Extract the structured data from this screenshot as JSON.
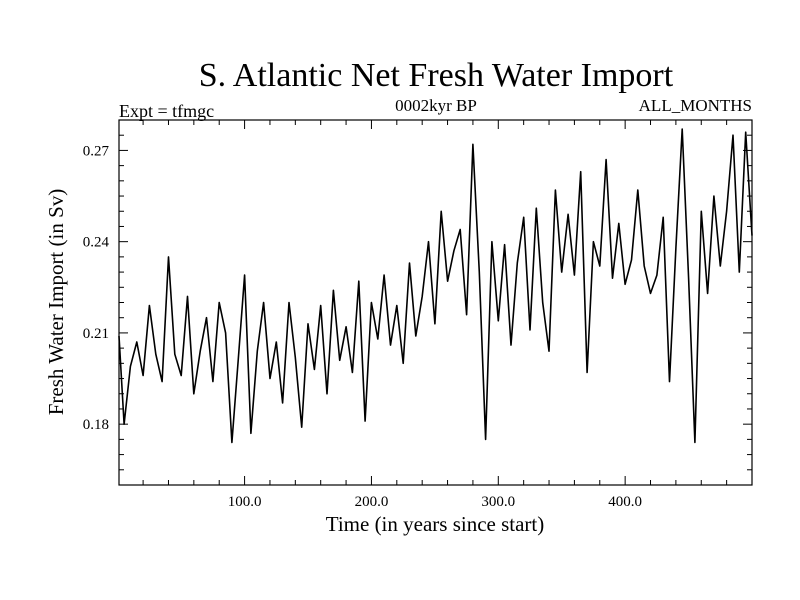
{
  "chart_data": {
    "type": "line",
    "title": "S. Atlantic Net Fresh Water Import",
    "subtitle_left": "Expt = tfmgc",
    "subtitle_center": "0002kyr BP",
    "subtitle_right": "ALL_MONTHS",
    "xlabel": "Time (in years since start)",
    "ylabel": "Fresh Water Import (in Sv)",
    "xlim": [
      1,
      500
    ],
    "ylim": [
      0.16,
      0.28
    ],
    "xticks": [
      100,
      200,
      300,
      400
    ],
    "xtick_labels": [
      "100.0",
      "200.0",
      "300.0",
      "400.0"
    ],
    "yticks": [
      0.18,
      0.21,
      0.24,
      0.27
    ],
    "ytick_labels": [
      "0.18",
      "0.21",
      "0.24",
      "0.27"
    ],
    "grid": false,
    "line_color": "#000000",
    "series": [
      {
        "x": [
          1,
          5,
          10,
          15,
          20,
          25,
          30,
          35,
          40,
          45,
          50,
          55,
          60,
          65,
          70,
          75,
          80,
          85,
          90,
          95,
          100,
          105,
          110,
          115,
          120,
          125,
          130,
          135,
          140,
          145,
          150,
          155,
          160,
          165,
          170,
          175,
          180,
          185,
          190,
          195,
          200,
          205,
          210,
          215,
          220,
          225,
          230,
          235,
          240,
          245,
          250,
          255,
          260,
          265,
          270,
          275,
          280,
          285,
          290,
          295,
          300,
          305,
          310,
          315,
          320,
          325,
          330,
          335,
          340,
          345,
          350,
          355,
          360,
          365,
          370,
          375,
          380,
          385,
          390,
          395,
          400,
          405,
          410,
          415,
          420,
          425,
          430,
          435,
          440,
          445,
          450,
          455,
          460,
          465,
          470,
          475,
          480,
          485,
          490,
          495,
          500
        ],
        "values": [
          0.209,
          0.18,
          0.199,
          0.207,
          0.196,
          0.219,
          0.203,
          0.194,
          0.235,
          0.203,
          0.196,
          0.222,
          0.19,
          0.204,
          0.215,
          0.194,
          0.22,
          0.21,
          0.174,
          0.201,
          0.229,
          0.177,
          0.204,
          0.22,
          0.195,
          0.207,
          0.187,
          0.22,
          0.202,
          0.179,
          0.213,
          0.198,
          0.219,
          0.19,
          0.224,
          0.201,
          0.212,
          0.197,
          0.227,
          0.181,
          0.22,
          0.208,
          0.229,
          0.206,
          0.219,
          0.2,
          0.233,
          0.209,
          0.222,
          0.24,
          0.213,
          0.25,
          0.227,
          0.237,
          0.244,
          0.216,
          0.272,
          0.23,
          0.175,
          0.24,
          0.214,
          0.239,
          0.206,
          0.233,
          0.248,
          0.211,
          0.251,
          0.22,
          0.204,
          0.257,
          0.23,
          0.249,
          0.229,
          0.263,
          0.197,
          0.24,
          0.232,
          0.267,
          0.228,
          0.246,
          0.226,
          0.234,
          0.257,
          0.232,
          0.223,
          0.229,
          0.248,
          0.194,
          0.238,
          0.277,
          0.228,
          0.174,
          0.25,
          0.223,
          0.255,
          0.232,
          0.25,
          0.275,
          0.23,
          0.276,
          0.242
        ]
      }
    ]
  }
}
